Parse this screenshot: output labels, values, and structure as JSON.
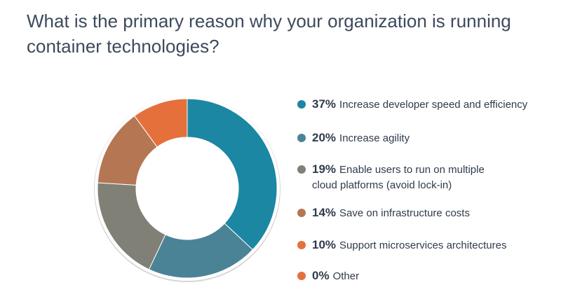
{
  "chart_data": {
    "type": "pie",
    "variant": "donut",
    "title": "What is the primary reason why your organization is running container technologies?",
    "legend_position": "right",
    "slices": [
      {
        "percent_label": "37%",
        "value": 37,
        "label": "Increase developer speed and efficiency",
        "color": "#1b87a3"
      },
      {
        "percent_label": "20%",
        "value": 20,
        "label": "Increase agility",
        "color": "#4a8396"
      },
      {
        "percent_label": "19%",
        "value": 19,
        "label": "Enable users to run on multiple cloud platforms (avoid lock-in)",
        "color": "#808077"
      },
      {
        "percent_label": "14%",
        "value": 14,
        "label": "Save on infrastructure costs",
        "color": "#b57654"
      },
      {
        "percent_label": "10%",
        "value": 10,
        "label": "Support microservices architectures",
        "color": "#e5703c"
      },
      {
        "percent_label": "0%",
        "value": 0,
        "label": "Other",
        "color": "#e5703c"
      }
    ]
  }
}
